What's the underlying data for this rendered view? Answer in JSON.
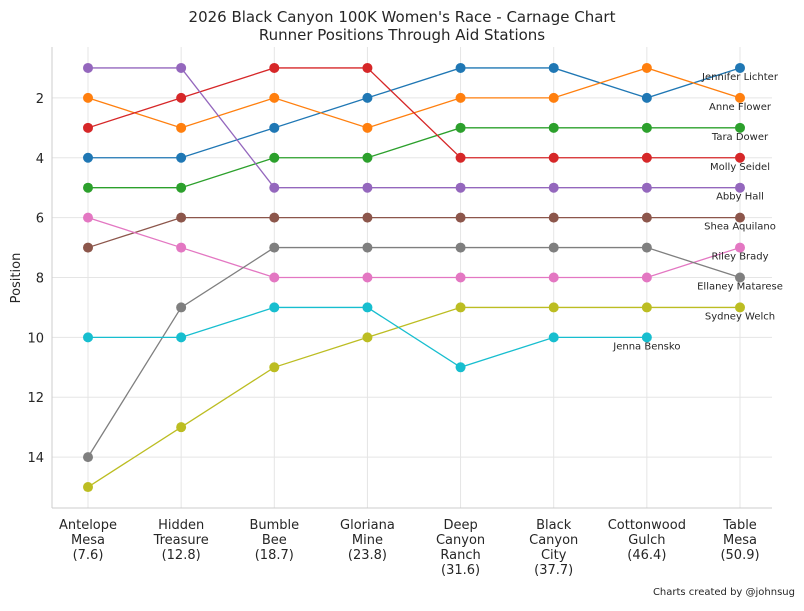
{
  "chart_data": {
    "type": "line",
    "title": "2026 Black Canyon 100K Women's Race - Carnage Chart",
    "subtitle": "Runner Positions Through Aid Stations",
    "ylabel": "Position",
    "xlabel": "",
    "ylim": [
      15.7,
      0.3
    ],
    "y_inverted": true,
    "yticks": [
      2,
      4,
      6,
      8,
      10,
      12,
      14
    ],
    "grid": true,
    "categories": [
      [
        "Antelope",
        "Mesa",
        "(7.6)"
      ],
      [
        "Hidden",
        "Treasure",
        "(12.8)"
      ],
      [
        "Bumble",
        "Bee",
        "(18.7)"
      ],
      [
        "Gloriana",
        "Mine",
        "(23.8)"
      ],
      [
        "Deep",
        "Canyon",
        "Ranch",
        "(31.6)"
      ],
      [
        "Black",
        "Canyon",
        "City",
        "(37.7)"
      ],
      [
        "Cottonwood",
        "Gulch",
        "(46.4)"
      ],
      [
        "Table",
        "Mesa",
        "(50.9)"
      ]
    ],
    "series": [
      {
        "name": "Jennifer Lichter",
        "color": "#1f77b4",
        "values": [
          4,
          4,
          3,
          2,
          1,
          1,
          2,
          1
        ]
      },
      {
        "name": "Anne Flower",
        "color": "#ff7f0e",
        "values": [
          2,
          3,
          2,
          3,
          2,
          2,
          1,
          2
        ]
      },
      {
        "name": "Tara Dower",
        "color": "#2ca02c",
        "values": [
          5,
          5,
          4,
          4,
          3,
          3,
          3,
          3
        ]
      },
      {
        "name": "Molly Seidel",
        "color": "#d62728",
        "values": [
          3,
          2,
          1,
          1,
          4,
          4,
          4,
          4
        ]
      },
      {
        "name": "Abby Hall",
        "color": "#9467bd",
        "values": [
          1,
          1,
          5,
          5,
          5,
          5,
          5,
          5
        ]
      },
      {
        "name": "Shea Aquilano",
        "color": "#8c564b",
        "values": [
          7,
          6,
          6,
          6,
          6,
          6,
          6,
          6
        ]
      },
      {
        "name": "Riley Brady",
        "color": "#e377c2",
        "values": [
          6,
          7,
          8,
          8,
          8,
          8,
          8,
          7
        ]
      },
      {
        "name": "Ellaney Matarese",
        "color": "#7f7f7f",
        "values": [
          14,
          9,
          7,
          7,
          7,
          7,
          7,
          8
        ]
      },
      {
        "name": "Sydney Welch",
        "color": "#bcbd22",
        "values": [
          15,
          13,
          11,
          10,
          9,
          9,
          9,
          9
        ]
      },
      {
        "name": "Jenna Bensko",
        "color": "#17becf",
        "values": [
          10,
          10,
          9,
          9,
          11,
          10,
          10,
          null
        ]
      }
    ]
  },
  "credit": "Charts created by @johnsug"
}
